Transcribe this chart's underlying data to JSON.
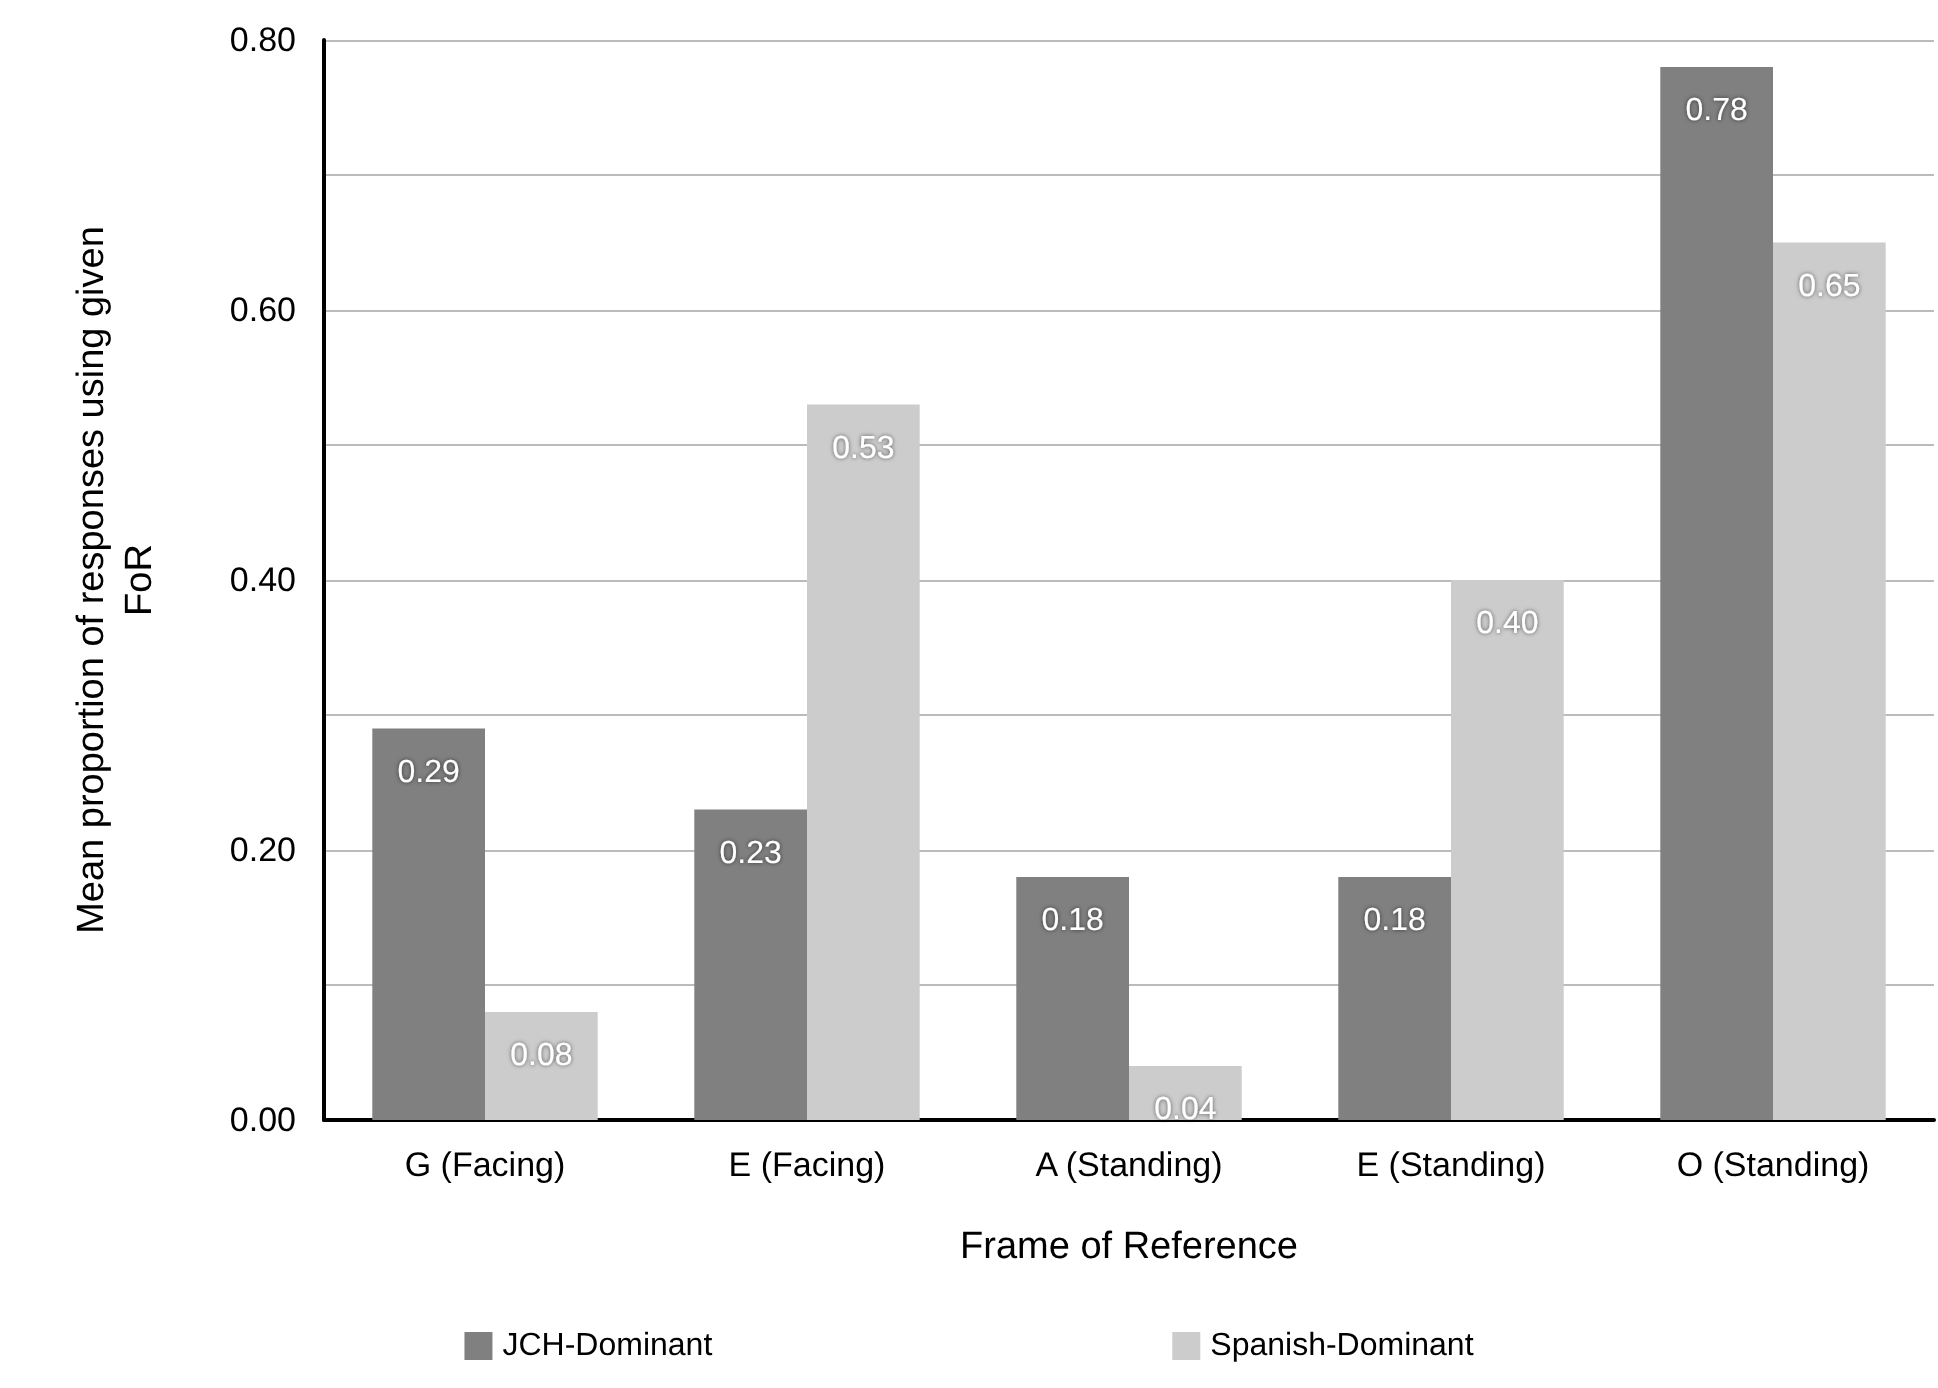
{
  "chart_data": {
    "type": "bar",
    "xlabel": "Frame of Reference",
    "ylabel": "Mean proportion of responses using given FoR",
    "categories": [
      "G (Facing)",
      "E (Facing)",
      "A (Standing)",
      "E (Standing)",
      "O (Standing)"
    ],
    "series": [
      {
        "name": "JCH-Dominant",
        "color": "#808080",
        "values": [
          0.29,
          0.23,
          0.18,
          0.18,
          0.78
        ],
        "value_labels": [
          "0.29",
          "0.23",
          "0.18",
          "0.18",
          "0.78"
        ]
      },
      {
        "name": "Spanish-Dominant",
        "color": "#cccccc",
        "values": [
          0.08,
          0.53,
          0.04,
          0.4,
          0.65
        ],
        "value_labels": [
          "0.08",
          "0.53",
          "0.04",
          "0.40",
          "0.65"
        ]
      }
    ],
    "ylim": [
      0,
      0.8
    ],
    "yticks": [
      {
        "value": 0,
        "label": "0.00"
      },
      {
        "value": 0.1,
        "label": null
      },
      {
        "value": 0.2,
        "label": "0.20"
      },
      {
        "value": 0.3,
        "label": null
      },
      {
        "value": 0.4,
        "label": "0.40"
      },
      {
        "value": 0.5,
        "label": null
      },
      {
        "value": 0.6,
        "label": "0.60"
      },
      {
        "value": 0.7,
        "label": null
      },
      {
        "value": 0.8,
        "label": "0.80"
      }
    ],
    "grid": "y",
    "legend": "bottom"
  }
}
